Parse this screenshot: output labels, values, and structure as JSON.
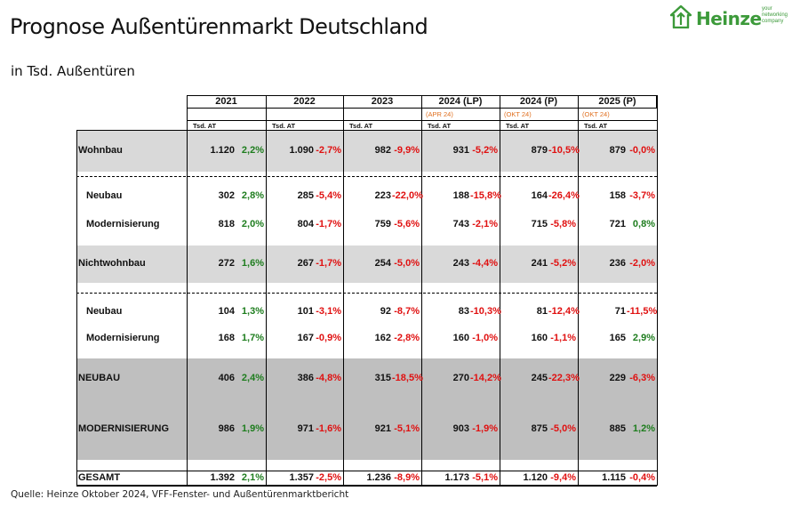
{
  "header": {
    "title": "Prognose Außentürenmarkt Deutschland",
    "subtitle": "in Tsd. Außentüren"
  },
  "logo": {
    "word": "Heinze",
    "tagline": "your networking company",
    "icon": "heinze-house-icon",
    "color": "#3c9a3a"
  },
  "footer": {
    "source": "Quelle: Heinze Oktober 2024, VFF-Fenster- und Außentürenmarktbericht"
  },
  "colors": {
    "positive": "#1e7d1e",
    "negative": "#e01010",
    "note": "#e07020",
    "band_light": "#d9d9d9",
    "band_dark": "#bfbfbf"
  },
  "chart_data": {
    "type": "table",
    "unit_label": "Tsd. AT",
    "columns": [
      {
        "year": "2021",
        "note": ""
      },
      {
        "year": "2022",
        "note": ""
      },
      {
        "year": "2023",
        "note": ""
      },
      {
        "year": "2024 (LP)",
        "note": "(APR 24)"
      },
      {
        "year": "2024 (P)",
        "note": "(OKT 24)"
      },
      {
        "year": "2025 (P)",
        "note": "(OKT 24)"
      }
    ],
    "rows": [
      {
        "label": "Wohnbau",
        "indent": false,
        "values": [
          "1.120",
          "1.090",
          "982",
          "931",
          "879",
          "879"
        ],
        "changes": [
          "2,2%",
          "-2,7%",
          "-9,9%",
          "-5,2%",
          "-10,5%",
          "-0,0%"
        ]
      },
      {
        "label": "Neubau",
        "indent": true,
        "values": [
          "302",
          "285",
          "223",
          "188",
          "164",
          "158"
        ],
        "changes": [
          "2,8%",
          "-5,4%",
          "-22,0%",
          "-15,8%",
          "-26,4%",
          "-3,7%"
        ]
      },
      {
        "label": "Modernisierung",
        "indent": true,
        "values": [
          "818",
          "804",
          "759",
          "743",
          "715",
          "721"
        ],
        "changes": [
          "2,0%",
          "-1,7%",
          "-5,6%",
          "-2,1%",
          "-5,8%",
          "0,8%"
        ]
      },
      {
        "label": "Nichtwohnbau",
        "indent": false,
        "values": [
          "272",
          "267",
          "254",
          "243",
          "241",
          "236"
        ],
        "changes": [
          "1,6%",
          "-1,7%",
          "-5,0%",
          "-4,4%",
          "-5,2%",
          "-2,0%"
        ]
      },
      {
        "label": "Neubau",
        "indent": true,
        "values": [
          "104",
          "101",
          "92",
          "83",
          "81",
          "71"
        ],
        "changes": [
          "1,3%",
          "-3,1%",
          "-8,7%",
          "-10,3%",
          "-12,4%",
          "-11,5%"
        ]
      },
      {
        "label": "Modernisierung",
        "indent": true,
        "values": [
          "168",
          "167",
          "162",
          "160",
          "160",
          "165"
        ],
        "changes": [
          "1,7%",
          "-0,9%",
          "-2,8%",
          "-1,0%",
          "-1,1%",
          "2,9%"
        ]
      },
      {
        "label": "NEUBAU",
        "indent": false,
        "values": [
          "406",
          "386",
          "315",
          "270",
          "245",
          "229"
        ],
        "changes": [
          "2,4%",
          "-4,8%",
          "-18,5%",
          "-14,2%",
          "-22,3%",
          "-6,3%"
        ]
      },
      {
        "label": "MODERNISIERUNG",
        "indent": false,
        "values": [
          "986",
          "971",
          "921",
          "903",
          "875",
          "885"
        ],
        "changes": [
          "1,9%",
          "-1,6%",
          "-5,1%",
          "-1,9%",
          "-5,0%",
          "1,2%"
        ]
      },
      {
        "label": "GESAMT",
        "indent": false,
        "values": [
          "1.392",
          "1.357",
          "1.236",
          "1.173",
          "1.120",
          "1.115"
        ],
        "changes": [
          "2,1%",
          "-2,5%",
          "-8,9%",
          "-5,1%",
          "-9,4%",
          "-0,4%"
        ]
      }
    ]
  }
}
